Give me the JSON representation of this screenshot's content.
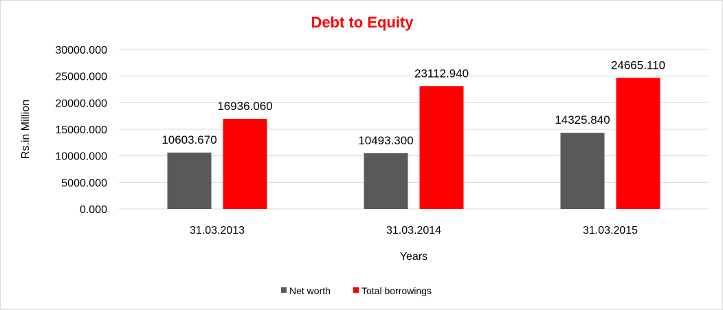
{
  "chart_data": {
    "type": "bar",
    "title": "Debt to Equity",
    "xlabel": "Years",
    "ylabel": "Rs.in Million",
    "categories": [
      "31.03.2013",
      "31.03.2014",
      "31.03.2015"
    ],
    "series": [
      {
        "name": "Net worth",
        "values": [
          10603.67,
          10493.3,
          14325.84
        ],
        "labels": [
          "10603.670",
          "10493.300",
          "14325.840"
        ],
        "color": "#595959"
      },
      {
        "name": "Total borrowings",
        "values": [
          16936.06,
          23112.94,
          24665.11
        ],
        "labels": [
          "16936.060",
          "23112.940",
          "24665.110"
        ],
        "color": "#ff0000"
      }
    ],
    "ylim": [
      0,
      30000
    ],
    "yticks": [
      0,
      5000,
      10000,
      15000,
      20000,
      25000,
      30000
    ],
    "ytick_labels": [
      "0.000",
      "5000.000",
      "10000.000",
      "15000.000",
      "20000.000",
      "25000.000",
      "30000.000"
    ],
    "grid": true,
    "legend_position": "bottom",
    "title_color": "#ff0000"
  }
}
